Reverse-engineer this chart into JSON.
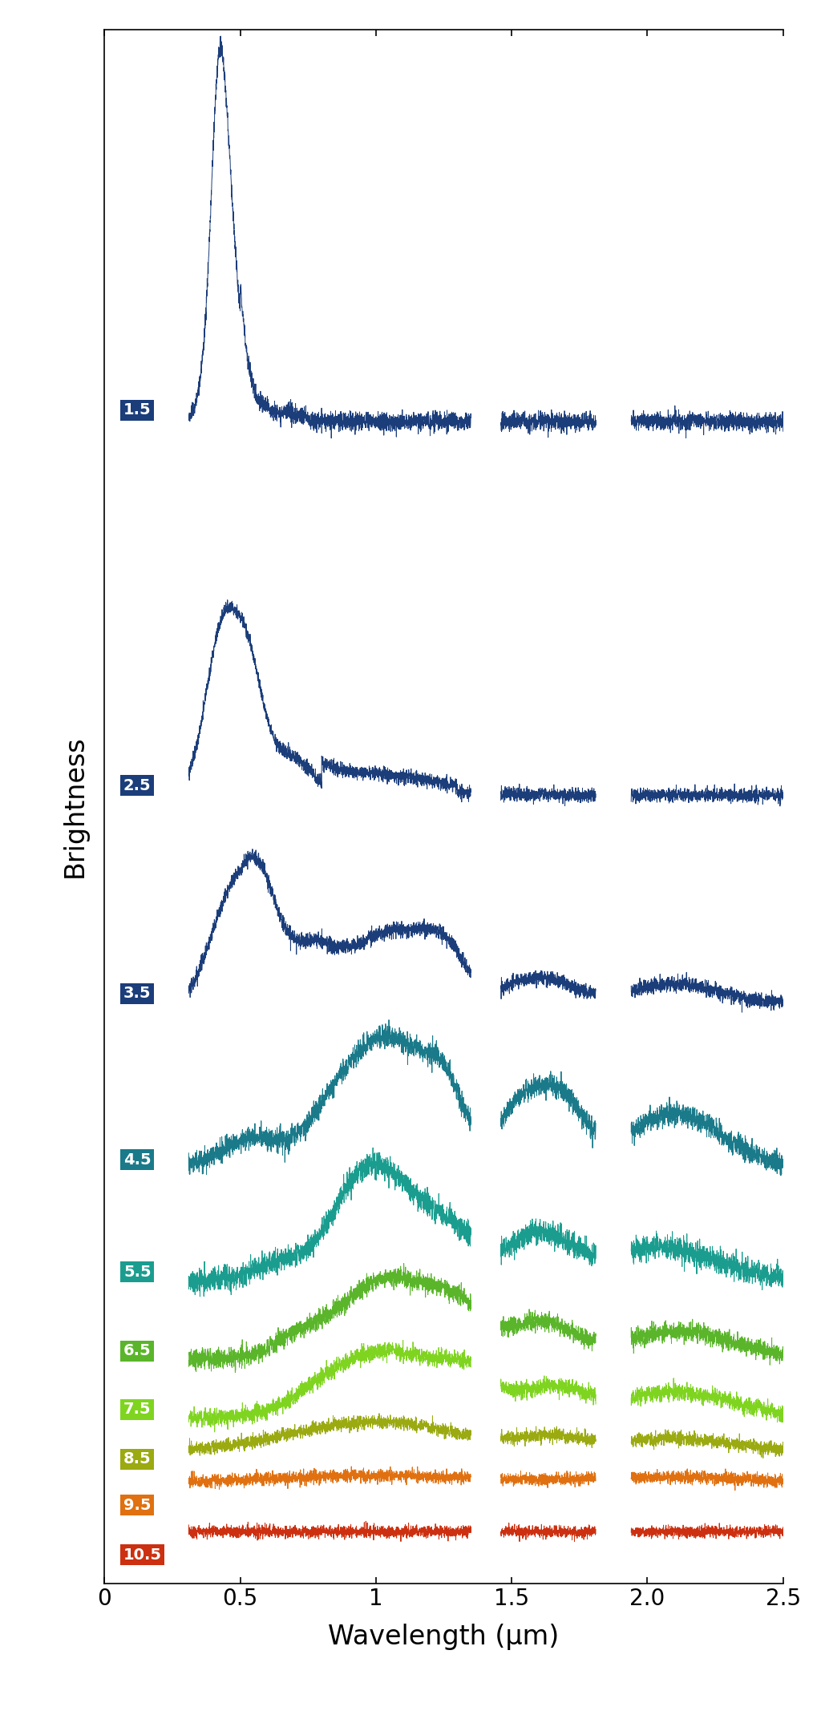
{
  "xlabel": "Wavelength (μm)",
  "ylabel": "Brightness",
  "xlim": [
    0,
    2.5
  ],
  "background_color": "#ffffff",
  "days": [
    1.5,
    2.5,
    3.5,
    4.5,
    5.5,
    6.5,
    7.5,
    8.5,
    9.5,
    10.5
  ],
  "label_colors": [
    "#1b3d7a",
    "#1b3d7a",
    "#1b3d7a",
    "#1a7a8a",
    "#1a9d8f",
    "#5ab52a",
    "#7fd420",
    "#9aaa10",
    "#e07010",
    "#cc3010"
  ],
  "line_colors": [
    "#1b3d7a",
    "#1b3d7a",
    "#1b3d7a",
    "#1a7a8a",
    "#1a9d8f",
    "#5ab52a",
    "#7fd420",
    "#9aaa10",
    "#e07010",
    "#cc3010"
  ],
  "xtick_labels": [
    "0",
    "0.5",
    "1",
    "1.5",
    "2.0",
    "2.5"
  ],
  "xtick_positions": [
    0,
    0.5,
    1.0,
    1.5,
    2.0,
    2.5
  ]
}
